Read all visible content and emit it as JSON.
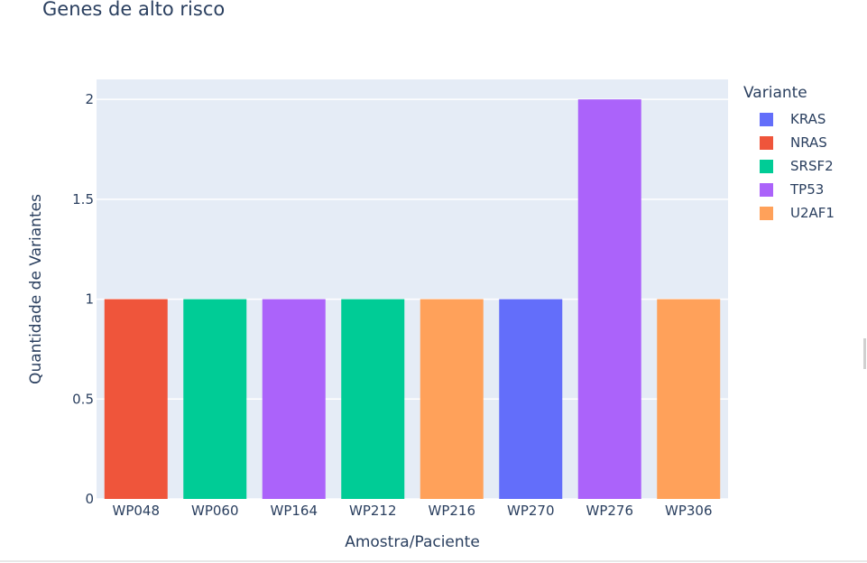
{
  "chart_data": {
    "type": "bar",
    "title": "Genes de alto risco",
    "xlabel": "Amostra/Paciente",
    "ylabel": "Quantidade de Variantes",
    "ylim": [
      0,
      2.1
    ],
    "yticks": [
      0,
      0.5,
      1,
      1.5,
      2
    ],
    "ytick_labels": [
      "0",
      "0.5",
      "1",
      "1.5",
      "2"
    ],
    "categories": [
      "WP048",
      "WP060",
      "WP164",
      "WP212",
      "WP216",
      "WP270",
      "WP276",
      "WP306"
    ],
    "series": [
      {
        "name": "KRAS",
        "color": "#636efa",
        "values": [
          0,
          0,
          0,
          0,
          0,
          1,
          0,
          0
        ]
      },
      {
        "name": "NRAS",
        "color": "#ef553b",
        "values": [
          1,
          0,
          0,
          0,
          0,
          0,
          0,
          0
        ]
      },
      {
        "name": "SRSF2",
        "color": "#00cc96",
        "values": [
          0,
          1,
          0,
          1,
          0,
          0,
          0,
          0
        ]
      },
      {
        "name": "TP53",
        "color": "#ab63fa",
        "values": [
          0,
          0,
          1,
          0,
          0,
          0,
          2,
          0
        ]
      },
      {
        "name": "U2AF1",
        "color": "#ffa15a",
        "values": [
          0,
          0,
          0,
          0,
          1,
          0,
          0,
          1
        ]
      }
    ],
    "legend": {
      "title": "Variante",
      "position": "right"
    },
    "grid": true,
    "background": "#e5ecf6"
  }
}
